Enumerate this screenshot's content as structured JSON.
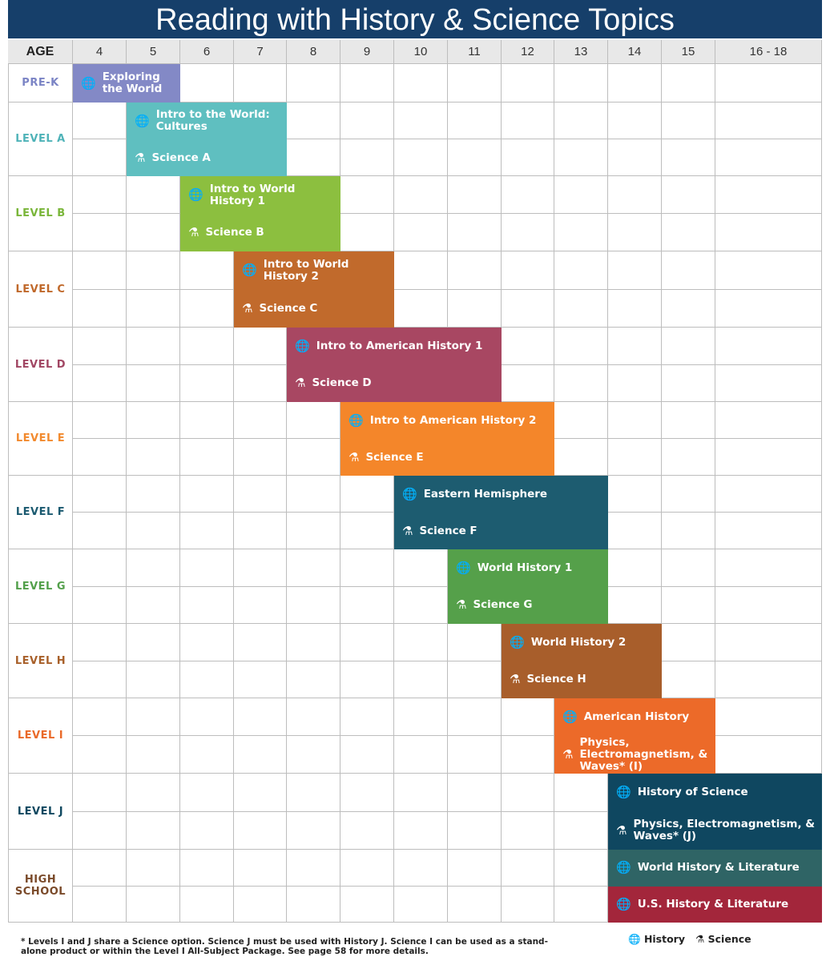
{
  "title": "Reading with History & Science Topics",
  "age_header": "AGE",
  "ages": [
    "4",
    "5",
    "6",
    "7",
    "8",
    "9",
    "10",
    "11",
    "12",
    "13",
    "14",
    "15",
    "16 - 18"
  ],
  "levels": [
    {
      "label": "PRE-K",
      "color": "#7b84c5"
    },
    {
      "label": "LEVEL A",
      "color": "#4fb3b8"
    },
    {
      "label": "LEVEL B",
      "color": "#7ab63a"
    },
    {
      "label": "LEVEL C",
      "color": "#c0692b"
    },
    {
      "label": "LEVEL D",
      "color": "#a14663"
    },
    {
      "label": "LEVEL E",
      "color": "#f28a2e"
    },
    {
      "label": "LEVEL F",
      "color": "#1b5a70"
    },
    {
      "label": "LEVEL G",
      "color": "#53a04b"
    },
    {
      "label": "LEVEL H",
      "color": "#a8602a"
    },
    {
      "label": "LEVEL I",
      "color": "#ea6a2a"
    },
    {
      "label": "LEVEL J",
      "color": "#0f4860"
    },
    {
      "label": "HIGH SCHOOL",
      "color": "#7a4a2a"
    }
  ],
  "courses": [
    {
      "name": "Exploring the World",
      "type": "history",
      "level": 0,
      "row": 0,
      "start_age": "4",
      "end_age": "5",
      "color": "#8389c6"
    },
    {
      "name": "Intro to the World: Cultures",
      "type": "history",
      "level": 1,
      "row": 0,
      "start_age": "5",
      "end_age": "7",
      "color": "#5fbfc0"
    },
    {
      "name": "Science A",
      "type": "science",
      "level": 1,
      "row": 1,
      "start_age": "5",
      "end_age": "7",
      "color": "#5fbfc0"
    },
    {
      "name": "Intro to World History 1",
      "type": "history",
      "level": 2,
      "row": 0,
      "start_age": "6",
      "end_age": "8",
      "color": "#8cbf3f"
    },
    {
      "name": "Science B",
      "type": "science",
      "level": 2,
      "row": 1,
      "start_age": "6",
      "end_age": "8",
      "color": "#8cbf3f"
    },
    {
      "name": "Intro to World History 2",
      "type": "history",
      "level": 3,
      "row": 0,
      "start_age": "7",
      "end_age": "9",
      "color": "#c16a2c"
    },
    {
      "name": "Science C",
      "type": "science",
      "level": 3,
      "row": 1,
      "start_age": "7",
      "end_age": "9",
      "color": "#c16a2c"
    },
    {
      "name": "Intro to American History 1",
      "type": "history",
      "level": 4,
      "row": 0,
      "start_age": "8",
      "end_age": "11",
      "color": "#a84762"
    },
    {
      "name": "Science D",
      "type": "science",
      "level": 4,
      "row": 1,
      "start_age": "8",
      "end_age": "11",
      "color": "#a84762"
    },
    {
      "name": "Intro to American History 2",
      "type": "history",
      "level": 5,
      "row": 0,
      "start_age": "9",
      "end_age": "12",
      "color": "#f4862a"
    },
    {
      "name": "Science E",
      "type": "science",
      "level": 5,
      "row": 1,
      "start_age": "9",
      "end_age": "12",
      "color": "#f4862a"
    },
    {
      "name": "Eastern Hemisphere",
      "type": "history",
      "level": 6,
      "row": 0,
      "start_age": "10",
      "end_age": "13",
      "color": "#1d5c70"
    },
    {
      "name": "Science F",
      "type": "science",
      "level": 6,
      "row": 1,
      "start_age": "10",
      "end_age": "13",
      "color": "#1d5c70"
    },
    {
      "name": "World History 1",
      "type": "history",
      "level": 7,
      "row": 0,
      "start_age": "11",
      "end_age": "13",
      "color": "#55a04a"
    },
    {
      "name": "Science G",
      "type": "science",
      "level": 7,
      "row": 1,
      "start_age": "11",
      "end_age": "13",
      "color": "#55a04a"
    },
    {
      "name": "World History 2",
      "type": "history",
      "level": 8,
      "row": 0,
      "start_age": "12",
      "end_age": "14",
      "color": "#a85e2b"
    },
    {
      "name": "Science H",
      "type": "science",
      "level": 8,
      "row": 1,
      "start_age": "12",
      "end_age": "14",
      "color": "#a85e2b"
    },
    {
      "name": "American History",
      "type": "history",
      "level": 9,
      "row": 0,
      "start_age": "13",
      "end_age": "15",
      "color": "#ec6a29"
    },
    {
      "name": "Physics, Electromagnetism, & Waves* (I)",
      "type": "science",
      "level": 9,
      "row": 1,
      "start_age": "13",
      "end_age": "15",
      "color": "#ec6a29"
    },
    {
      "name": "History of Science",
      "type": "history",
      "level": 10,
      "row": 0,
      "start_age": "14",
      "end_age": "16 - 18",
      "color": "#0f4760"
    },
    {
      "name": "Physics, Electromagnetism, & Waves* (J)",
      "type": "science",
      "level": 10,
      "row": 1,
      "start_age": "14",
      "end_age": "16 - 18",
      "color": "#0f4760"
    },
    {
      "name": "World History & Literature",
      "type": "history",
      "level": 11,
      "row": 0,
      "start_age": "14",
      "end_age": "16 - 18",
      "color": "#2f6465"
    },
    {
      "name": "U.S. History & Literature",
      "type": "history",
      "level": 11,
      "row": 1,
      "start_age": "14",
      "end_age": "16 - 18",
      "color": "#a3263b"
    }
  ],
  "footnote": "* Levels I and J share a Science option. Science J must be used with History J. Science I can be used as a stand-alone product or within the Level I All-Subject Package. See page 58 for more details.",
  "legend": {
    "history": "History",
    "science": "Science"
  },
  "icons": {
    "history": "globe-icon",
    "science": "flask-icon"
  }
}
